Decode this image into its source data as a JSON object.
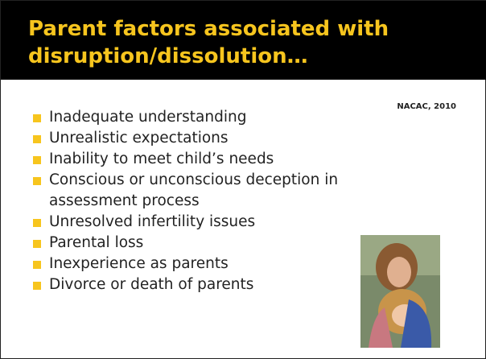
{
  "header": {
    "title": "Parent factors associated with disruption/dissolution…"
  },
  "source": "NACAC, 2010",
  "bullets": [
    "Inadequate understanding",
    "Unrealistic expectations",
    "Inability to meet child’s needs",
    "Conscious or unconscious deception in assessment process",
    "Unresolved infertility issues",
    "Parental loss",
    "Inexperience as parents",
    "Divorce or death of parents"
  ]
}
